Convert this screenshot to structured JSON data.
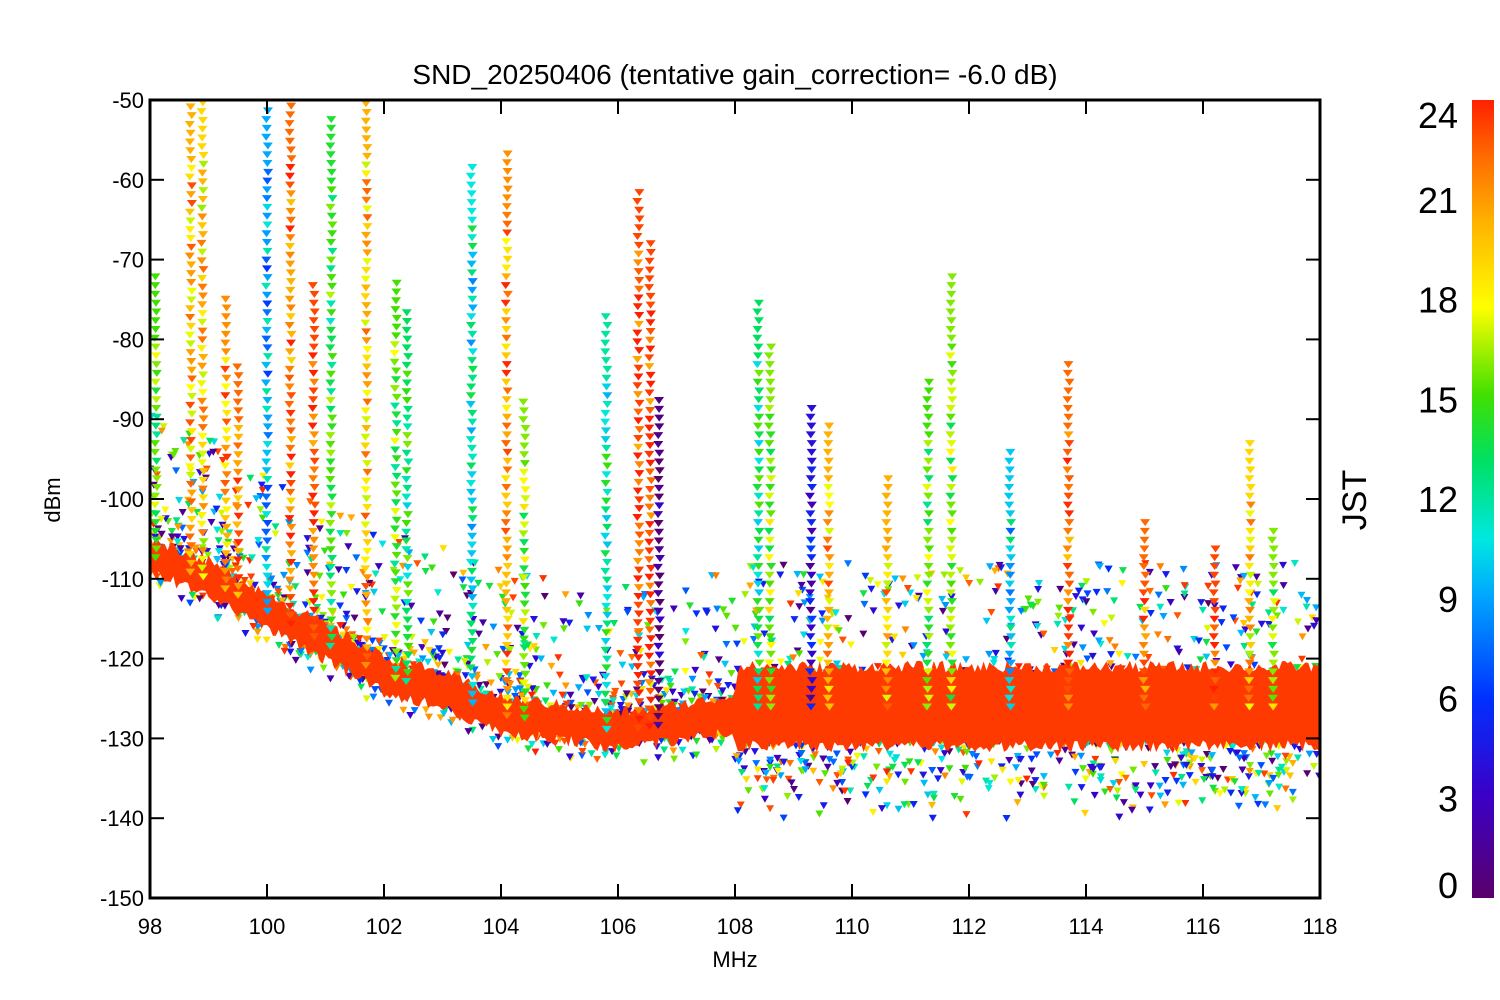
{
  "chart_data": {
    "type": "scatter",
    "title": "SND_20250406 (tentative gain_correction= -6.0 dB)",
    "xlabel": "MHz",
    "ylabel": "dBm",
    "xlim": [
      98,
      118
    ],
    "ylim": [
      -150,
      -50
    ],
    "x_ticks": [
      98,
      100,
      102,
      104,
      106,
      108,
      110,
      112,
      114,
      116,
      118
    ],
    "y_ticks": [
      -50,
      -60,
      -70,
      -80,
      -90,
      -100,
      -110,
      -120,
      -130,
      -140,
      -150
    ],
    "colorbar": {
      "label": "JST",
      "range": [
        0,
        24
      ],
      "ticks": [
        24,
        21,
        18,
        15,
        12,
        9,
        6,
        3,
        0
      ],
      "colormap": "rainbow (purple-blue-cyan-green-yellow-orange-red)"
    },
    "noise_floor": [
      {
        "x": 98.0,
        "y": -107
      },
      {
        "x": 99.0,
        "y": -110
      },
      {
        "x": 100.0,
        "y": -114
      },
      {
        "x": 101.0,
        "y": -118
      },
      {
        "x": 102.0,
        "y": -122
      },
      {
        "x": 103.0,
        "y": -124
      },
      {
        "x": 104.0,
        "y": -127
      },
      {
        "x": 105.0,
        "y": -128
      },
      {
        "x": 106.0,
        "y": -129
      },
      {
        "x": 107.0,
        "y": -128
      },
      {
        "x": 107.9,
        "y": -127
      },
      {
        "x": 108.0,
        "y": -126
      },
      {
        "x": 118.0,
        "y": -126
      }
    ],
    "peaks": [
      {
        "x": 98.1,
        "top": -72,
        "jst": 15
      },
      {
        "x": 98.7,
        "top": -50,
        "jst": 20
      },
      {
        "x": 98.9,
        "top": -50,
        "jst": 19
      },
      {
        "x": 99.3,
        "top": -74,
        "jst": 21
      },
      {
        "x": 99.5,
        "top": -83,
        "jst": 22
      },
      {
        "x": 100.0,
        "top": -51,
        "jst": 9
      },
      {
        "x": 100.4,
        "top": -50,
        "jst": 22
      },
      {
        "x": 100.8,
        "top": -73,
        "jst": 23
      },
      {
        "x": 101.1,
        "top": -52,
        "jst": 14
      },
      {
        "x": 101.7,
        "top": -50,
        "jst": 20
      },
      {
        "x": 102.2,
        "top": -72,
        "jst": 15
      },
      {
        "x": 102.4,
        "top": -76,
        "jst": 13
      },
      {
        "x": 103.5,
        "top": -58,
        "jst": 11
      },
      {
        "x": 104.1,
        "top": -56,
        "jst": 21
      },
      {
        "x": 104.4,
        "top": -87,
        "jst": 16
      },
      {
        "x": 105.8,
        "top": -77,
        "jst": 12
      },
      {
        "x": 106.35,
        "top": -61,
        "jst": 23
      },
      {
        "x": 106.55,
        "top": -67,
        "jst": 23
      },
      {
        "x": 106.7,
        "top": -87,
        "jst": 1
      },
      {
        "x": 108.4,
        "top": -75,
        "jst": 13
      },
      {
        "x": 108.6,
        "top": -80,
        "jst": 16
      },
      {
        "x": 109.3,
        "top": -88,
        "jst": 4
      },
      {
        "x": 109.6,
        "top": -90,
        "jst": 20
      },
      {
        "x": 110.6,
        "top": -97,
        "jst": 20
      },
      {
        "x": 111.3,
        "top": -85,
        "jst": 15
      },
      {
        "x": 111.7,
        "top": -72,
        "jst": 16
      },
      {
        "x": 112.7,
        "top": -94,
        "jst": 10
      },
      {
        "x": 113.7,
        "top": -83,
        "jst": 22
      },
      {
        "x": 115.0,
        "top": -102,
        "jst": 22
      },
      {
        "x": 116.2,
        "top": -106,
        "jst": 23
      },
      {
        "x": 116.8,
        "top": -92,
        "jst": 19
      },
      {
        "x": 117.2,
        "top": -103,
        "jst": 16
      }
    ]
  }
}
